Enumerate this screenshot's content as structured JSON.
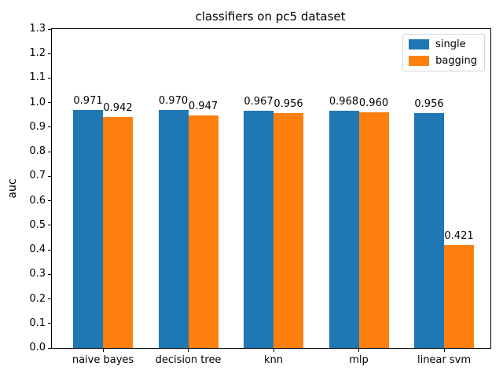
{
  "chart_data": {
    "type": "bar",
    "title": "classifiers on pc5 dataset",
    "xlabel": "",
    "ylabel": "auc",
    "categories": [
      "naive bayes",
      "decision tree",
      "knn",
      "mlp",
      "linear svm"
    ],
    "series": [
      {
        "name": "single",
        "color": "#1f77b4",
        "values": [
          0.971,
          0.97,
          0.967,
          0.968,
          0.956
        ]
      },
      {
        "name": "bagging",
        "color": "#ff7f0e",
        "values": [
          0.942,
          0.947,
          0.956,
          0.96,
          0.421
        ]
      }
    ],
    "bar_value_labels": [
      [
        "0.971",
        "0.970",
        "0.967",
        "0.968",
        "0.956"
      ],
      [
        "0.942",
        "0.947",
        "0.956",
        "0.960",
        "0.421"
      ]
    ],
    "ylim": [
      0.0,
      1.3
    ],
    "ytick_step": 0.1,
    "ytick_labels": [
      "0.0",
      "0.1",
      "0.2",
      "0.3",
      "0.4",
      "0.5",
      "0.6",
      "0.7",
      "0.8",
      "0.9",
      "1.0",
      "1.1",
      "1.2",
      "1.3"
    ],
    "legend": {
      "position": "upper right",
      "entries": [
        "single",
        "bagging"
      ]
    },
    "grid": false
  }
}
